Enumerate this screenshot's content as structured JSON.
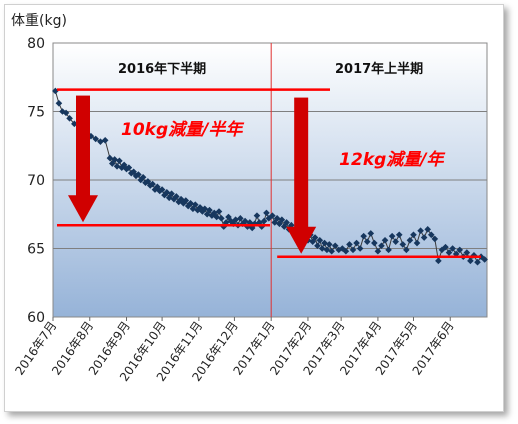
{
  "chart_data": {
    "type": "scatter",
    "ylabel": "体重(kg)",
    "ylim": [
      60,
      80
    ],
    "yticks": [
      60,
      65,
      70,
      75,
      80
    ],
    "xlim": [
      "2016-07-01",
      "2017-07-02"
    ],
    "xticks": [
      {
        "label": "2016年7月",
        "date": "2016-07-01"
      },
      {
        "label": "2016年8月",
        "date": "2016-08-01"
      },
      {
        "label": "2016年9月",
        "date": "2016-09-01"
      },
      {
        "label": "2016年10月",
        "date": "2016-10-01"
      },
      {
        "label": "2016年11月",
        "date": "2016-11-01"
      },
      {
        "label": "2016年12月",
        "date": "2016-12-01"
      },
      {
        "label": "2017年1月",
        "date": "2017-01-01"
      },
      {
        "label": "2017年2月",
        "date": "2017-02-01"
      },
      {
        "label": "2017年3月",
        "date": "2017-03-01"
      },
      {
        "label": "2017年4月",
        "date": "2017-04-01"
      },
      {
        "label": "2017年5月",
        "date": "2017-05-01"
      },
      {
        "label": "2017年6月",
        "date": "2017-06-01"
      }
    ],
    "grid": true,
    "marker_color": "#17375e",
    "line_color": "#3a3a3a",
    "background_gradient": [
      "#ffffff",
      "#96b3d8"
    ],
    "periods": [
      {
        "label": "2016年下半期",
        "from": "2016-07-01",
        "to": "2017-01-01"
      },
      {
        "label": "2017年上半期",
        "from": "2017-01-01",
        "to": "2017-07-02"
      }
    ],
    "divider_date": "2017-01-01",
    "annotations": [
      {
        "text": "10kg減量/半年",
        "color": "#ff0000",
        "level_from": 76.6,
        "level_to": 66.7,
        "from": "2016-07-01",
        "to": "2016-12-31"
      },
      {
        "text": "12kg減量/年",
        "color": "#ff0000",
        "level_from": 76.6,
        "level_to": 64.4,
        "from": "2017-01-01",
        "to": "2017-07-02"
      }
    ],
    "series": [
      {
        "points": [
          [
            "2016-07-03",
            76.5
          ],
          [
            "2016-07-06",
            75.6
          ],
          [
            "2016-07-09",
            75.0
          ],
          [
            "2016-07-12",
            74.9
          ],
          [
            "2016-07-15",
            74.5
          ],
          [
            "2016-07-19",
            74.1
          ],
          [
            "2016-07-24",
            73.9
          ],
          [
            "2016-07-28",
            73.6
          ],
          [
            "2016-08-02",
            73.2
          ],
          [
            "2016-08-06",
            73.0
          ],
          [
            "2016-08-10",
            72.8
          ],
          [
            "2016-08-14",
            72.9
          ],
          [
            "2016-08-18",
            71.6
          ],
          [
            "2016-08-20",
            71.2
          ],
          [
            "2016-08-22",
            71.5
          ],
          [
            "2016-08-24",
            71.0
          ],
          [
            "2016-08-26",
            71.4
          ],
          [
            "2016-08-28",
            70.9
          ],
          [
            "2016-08-30",
            71.1
          ],
          [
            "2016-09-01",
            70.8
          ],
          [
            "2016-09-03",
            70.9
          ],
          [
            "2016-09-05",
            70.5
          ],
          [
            "2016-09-07",
            70.6
          ],
          [
            "2016-09-09",
            70.3
          ],
          [
            "2016-09-11",
            70.4
          ],
          [
            "2016-09-13",
            70.0
          ],
          [
            "2016-09-15",
            70.2
          ],
          [
            "2016-09-17",
            69.8
          ],
          [
            "2016-09-19",
            69.9
          ],
          [
            "2016-09-21",
            69.6
          ],
          [
            "2016-09-23",
            69.7
          ],
          [
            "2016-09-25",
            69.3
          ],
          [
            "2016-09-27",
            69.5
          ],
          [
            "2016-09-29",
            69.2
          ],
          [
            "2016-10-01",
            69.3
          ],
          [
            "2016-10-03",
            68.9
          ],
          [
            "2016-10-05",
            69.1
          ],
          [
            "2016-10-07",
            68.7
          ],
          [
            "2016-10-09",
            69.0
          ],
          [
            "2016-10-11",
            68.6
          ],
          [
            "2016-10-13",
            68.8
          ],
          [
            "2016-10-15",
            68.4
          ],
          [
            "2016-10-17",
            68.6
          ],
          [
            "2016-10-19",
            68.3
          ],
          [
            "2016-10-21",
            68.5
          ],
          [
            "2016-10-23",
            68.1
          ],
          [
            "2016-10-25",
            68.3
          ],
          [
            "2016-10-27",
            67.9
          ],
          [
            "2016-10-29",
            68.2
          ],
          [
            "2016-10-31",
            67.8
          ],
          [
            "2016-11-02",
            68.0
          ],
          [
            "2016-11-04",
            67.7
          ],
          [
            "2016-11-06",
            67.9
          ],
          [
            "2016-11-08",
            67.5
          ],
          [
            "2016-11-10",
            67.8
          ],
          [
            "2016-11-12",
            67.4
          ],
          [
            "2016-11-14",
            67.6
          ],
          [
            "2016-11-16",
            67.3
          ],
          [
            "2016-11-18",
            67.7
          ],
          [
            "2016-11-20",
            67.2
          ],
          [
            "2016-11-22",
            66.6
          ],
          [
            "2016-11-24",
            66.9
          ],
          [
            "2016-11-26",
            67.3
          ],
          [
            "2016-11-28",
            67.0
          ],
          [
            "2016-11-30",
            66.8
          ],
          [
            "2016-12-02",
            67.1
          ],
          [
            "2016-12-04",
            66.7
          ],
          [
            "2016-12-06",
            67.2
          ],
          [
            "2016-12-08",
            66.8
          ],
          [
            "2016-12-10",
            67.0
          ],
          [
            "2016-12-12",
            66.6
          ],
          [
            "2016-12-14",
            66.9
          ],
          [
            "2016-12-16",
            66.5
          ],
          [
            "2016-12-18",
            66.8
          ],
          [
            "2016-12-20",
            67.4
          ],
          [
            "2016-12-22",
            66.9
          ],
          [
            "2016-12-24",
            66.6
          ],
          [
            "2016-12-26",
            67.0
          ],
          [
            "2016-12-28",
            67.6
          ],
          [
            "2016-12-30",
            67.2
          ],
          [
            "2017-01-02",
            67.4
          ],
          [
            "2017-01-04",
            66.9
          ],
          [
            "2017-01-06",
            67.2
          ],
          [
            "2017-01-08",
            66.8
          ],
          [
            "2017-01-10",
            67.1
          ],
          [
            "2017-01-12",
            66.6
          ],
          [
            "2017-01-14",
            66.9
          ],
          [
            "2017-01-16",
            66.4
          ],
          [
            "2017-01-18",
            66.7
          ],
          [
            "2017-01-20",
            66.2
          ],
          [
            "2017-01-22",
            66.5
          ],
          [
            "2017-01-24",
            66.0
          ],
          [
            "2017-01-26",
            66.3
          ],
          [
            "2017-01-28",
            65.8
          ],
          [
            "2017-01-30",
            66.1
          ],
          [
            "2017-02-01",
            65.6
          ],
          [
            "2017-02-03",
            66.0
          ],
          [
            "2017-02-05",
            65.5
          ],
          [
            "2017-02-07",
            65.8
          ],
          [
            "2017-02-09",
            65.2
          ],
          [
            "2017-02-11",
            65.6
          ],
          [
            "2017-02-13",
            65.0
          ],
          [
            "2017-02-15",
            65.4
          ],
          [
            "2017-02-17",
            64.9
          ],
          [
            "2017-02-19",
            65.3
          ],
          [
            "2017-02-21",
            64.8
          ],
          [
            "2017-02-24",
            65.2
          ],
          [
            "2017-02-27",
            64.9
          ],
          [
            "2017-03-02",
            65.0
          ],
          [
            "2017-03-05",
            64.8
          ],
          [
            "2017-03-08",
            65.3
          ],
          [
            "2017-03-11",
            64.9
          ],
          [
            "2017-03-14",
            65.4
          ],
          [
            "2017-03-17",
            65.0
          ],
          [
            "2017-03-20",
            65.9
          ],
          [
            "2017-03-23",
            65.5
          ],
          [
            "2017-03-26",
            66.1
          ],
          [
            "2017-03-29",
            65.4
          ],
          [
            "2017-04-01",
            64.8
          ],
          [
            "2017-04-04",
            65.2
          ],
          [
            "2017-04-07",
            65.6
          ],
          [
            "2017-04-10",
            64.9
          ],
          [
            "2017-04-13",
            65.9
          ],
          [
            "2017-04-16",
            65.5
          ],
          [
            "2017-04-19",
            66.0
          ],
          [
            "2017-04-22",
            65.3
          ],
          [
            "2017-04-25",
            64.9
          ],
          [
            "2017-04-28",
            65.6
          ],
          [
            "2017-05-01",
            66.0
          ],
          [
            "2017-05-04",
            65.4
          ],
          [
            "2017-05-07",
            66.3
          ],
          [
            "2017-05-10",
            65.8
          ],
          [
            "2017-05-13",
            66.4
          ],
          [
            "2017-05-16",
            66.0
          ],
          [
            "2017-05-19",
            65.7
          ],
          [
            "2017-05-22",
            64.1
          ],
          [
            "2017-05-25",
            64.9
          ],
          [
            "2017-05-28",
            65.1
          ],
          [
            "2017-05-31",
            64.7
          ],
          [
            "2017-06-03",
            65.0
          ],
          [
            "2017-06-06",
            64.6
          ],
          [
            "2017-06-09",
            64.9
          ],
          [
            "2017-06-12",
            64.4
          ],
          [
            "2017-06-15",
            64.7
          ],
          [
            "2017-06-18",
            64.1
          ],
          [
            "2017-06-21",
            64.5
          ],
          [
            "2017-06-24",
            64.0
          ],
          [
            "2017-06-27",
            64.4
          ],
          [
            "2017-06-30",
            64.2
          ]
        ]
      }
    ]
  }
}
